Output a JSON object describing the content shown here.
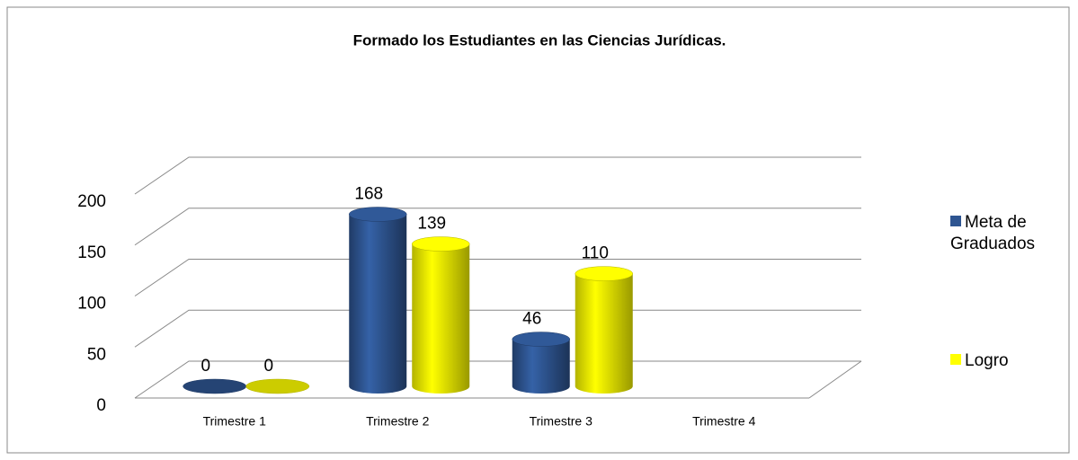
{
  "chart_data": {
    "type": "bar3d",
    "title": "Formado los Estudiantes en las Ciencias Jurídicas.",
    "categories": [
      "Trimestre 1",
      "Trimestre 2",
      "Trimestre 3",
      "Trimestre 4"
    ],
    "series": [
      {
        "name": "Meta de Graduados",
        "color": "#2e5591",
        "values": [
          0,
          168,
          46,
          null
        ]
      },
      {
        "name": "Logro",
        "color": "#ffff00",
        "values": [
          0,
          139,
          110,
          null
        ]
      }
    ],
    "ylim": [
      0,
      200
    ],
    "yticks": [
      0,
      50,
      100,
      150,
      200
    ],
    "grid": true,
    "legend": "right"
  }
}
